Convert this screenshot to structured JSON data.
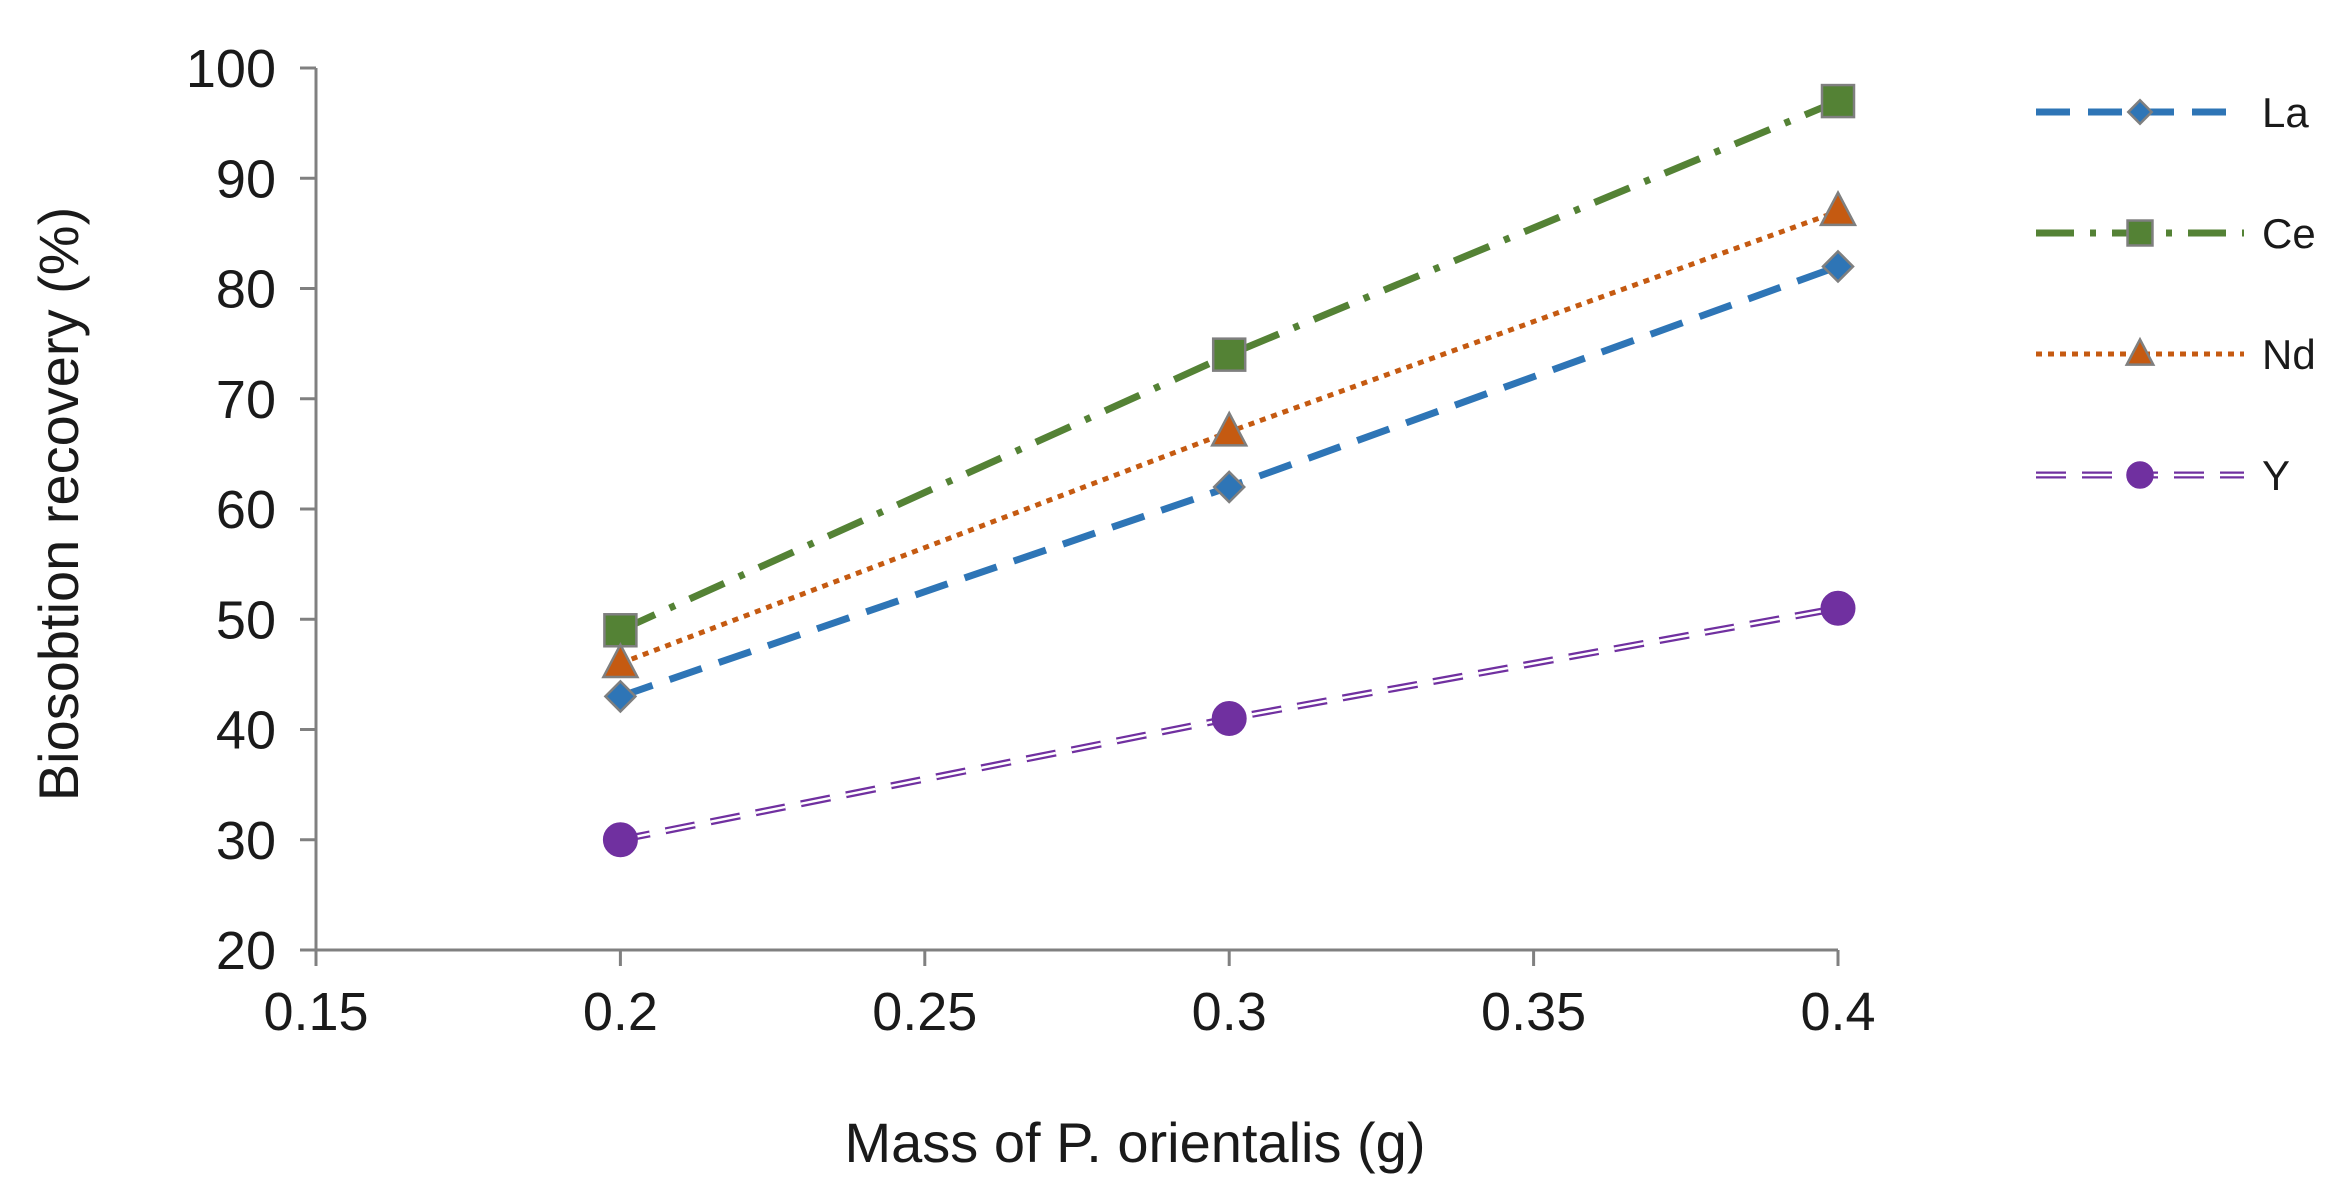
{
  "chart_data": {
    "type": "line",
    "title": "",
    "xlabel": "Mass of P. orientalis (g)",
    "ylabel": "Biosobtion recovery (%)",
    "xlim": [
      0.15,
      0.4
    ],
    "ylim": [
      20,
      100
    ],
    "xticks": [
      0.15,
      0.2,
      0.25,
      0.3,
      0.35,
      0.4
    ],
    "xtick_labels": [
      "0.15",
      "0.2",
      "0.25",
      "0.3",
      "0.35",
      "0.4"
    ],
    "yticks": [
      20,
      30,
      40,
      50,
      60,
      70,
      80,
      90,
      100
    ],
    "ytick_labels": [
      "20",
      "30",
      "40",
      "50",
      "60",
      "70",
      "80",
      "90",
      "100"
    ],
    "grid": false,
    "legend_position": "right",
    "x": [
      0.2,
      0.3,
      0.4
    ],
    "series": [
      {
        "name": "La",
        "values": [
          43,
          62,
          82
        ],
        "color": "#2e75b6",
        "marker": "diamond",
        "line": "dashed"
      },
      {
        "name": "Ce",
        "values": [
          49,
          74,
          97
        ],
        "color": "#548235",
        "marker": "square",
        "line": "dashdot"
      },
      {
        "name": "Nd",
        "values": [
          46,
          67,
          87
        ],
        "color": "#c55a11",
        "marker": "triangle",
        "line": "dotted"
      },
      {
        "name": "Y",
        "values": [
          30,
          41,
          51
        ],
        "color": "#7030a0",
        "marker": "circle",
        "line": "double-dashed"
      }
    ]
  }
}
